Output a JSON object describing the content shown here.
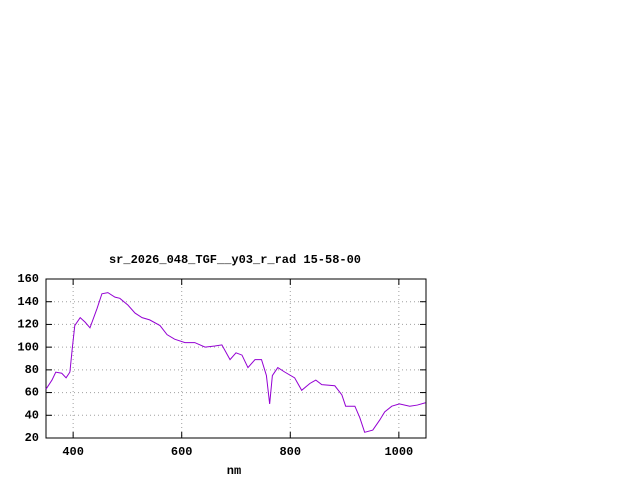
{
  "chart_data": {
    "type": "line",
    "title": "sr_2026_048_TGF__y03_r_rad 15-58-00",
    "x_label": "nm",
    "xlim": [
      350,
      1050
    ],
    "ylim": [
      20,
      160
    ],
    "xticks": [
      400,
      600,
      800,
      1000
    ],
    "yticks": [
      20,
      40,
      60,
      80,
      100,
      120,
      140,
      160
    ],
    "grid": true,
    "series": [
      {
        "color": "#9400d3",
        "x": [
          350,
          361,
          368,
          379,
          387,
          394,
          398,
          403,
          413,
          422,
          431,
          444,
          453,
          464,
          477,
          486,
          501,
          514,
          527,
          541,
          560,
          573,
          587,
          606,
          624,
          643,
          661,
          674,
          689,
          700,
          711,
          722,
          735,
          747,
          756,
          762,
          767,
          777,
          790,
          808,
          821,
          836,
          847,
          858,
          882,
          895,
          902,
          919,
          928,
          937,
          952,
          965,
          974,
          987,
          1001,
          1020,
          1034,
          1049
        ],
        "values": [
          63,
          71,
          78,
          77,
          73,
          78,
          97,
          119,
          126,
          122,
          117,
          134,
          147,
          148,
          144,
          143,
          137,
          130,
          126,
          124,
          119,
          111,
          107,
          104,
          104,
          100,
          101,
          102,
          89,
          95,
          93,
          82,
          89,
          89,
          75,
          50,
          75,
          82,
          78,
          73,
          62,
          68,
          71,
          67,
          66,
          58,
          48,
          48,
          38,
          25,
          27,
          36,
          43,
          48,
          50,
          48,
          49,
          51
        ]
      }
    ]
  }
}
